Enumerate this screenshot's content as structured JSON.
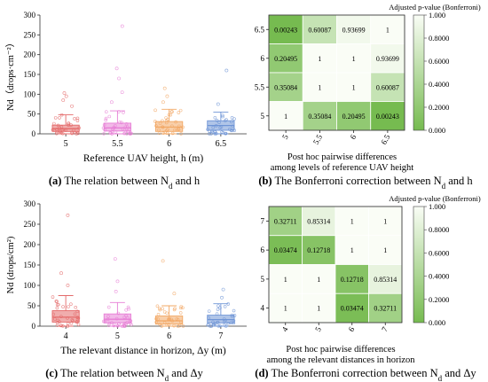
{
  "chart_data": [
    {
      "type": "box",
      "caption": {
        "letter": "(a)",
        "text": " The relation between N",
        "sub": "d",
        "tail": " and h"
      },
      "ylabel": "Nd（drops·cm⁻²）",
      "xlabel": "Reference UAV height, h (m)",
      "categories": [
        "5",
        "5.5",
        "6",
        "6.5"
      ],
      "ylim": [
        0,
        300
      ],
      "yticks": [
        0,
        50,
        100,
        150,
        200,
        250,
        300
      ],
      "boxes": [
        {
          "q1": 6,
          "median": 13,
          "q3": 22,
          "whisker_low": 0,
          "whisker_high": 48,
          "outliers": [
            70,
            85,
            95,
            103
          ],
          "color": "#e46a6a"
        },
        {
          "q1": 7,
          "median": 15,
          "q3": 27,
          "whisker_low": 0,
          "whisker_high": 58,
          "outliers": [
            80,
            105,
            140,
            165,
            272
          ],
          "color": "#e77fd6"
        },
        {
          "q1": 6,
          "median": 17,
          "q3": 31,
          "whisker_low": 0,
          "whisker_high": 62,
          "outliers": [
            80,
            95,
            115
          ],
          "color": "#f2a865"
        },
        {
          "q1": 9,
          "median": 21,
          "q3": 33,
          "whisker_low": 0,
          "whisker_high": 55,
          "outliers": [
            75,
            160
          ],
          "color": "#6f95d6"
        }
      ]
    },
    {
      "type": "heatmap",
      "caption": {
        "letter": "(b)",
        "text": " The Bonferroni correction between N",
        "sub": "d",
        "tail": " and h"
      },
      "xlabel_lines": [
        "Post hoc pairwise differences",
        "among levels of reference UAV height"
      ],
      "colorbar_title": "Adjusted p-value (Bonferroni)",
      "colorbar_ticks": [
        "0.000",
        "0.2000",
        "0.4000",
        "0.6000",
        "0.8000",
        "1.000"
      ],
      "x_categories": [
        "5",
        "5.5",
        "6",
        "6.5"
      ],
      "y_categories": [
        "6.5",
        "6",
        "5.5",
        "5"
      ],
      "matrix": [
        [
          "0.00243",
          "0.60087",
          "0.93699",
          "1"
        ],
        [
          "0.20495",
          "1",
          "1",
          "0.93699"
        ],
        [
          "0.35084",
          "1",
          "1",
          "0.60087"
        ],
        [
          "1",
          "0.35084",
          "0.20495",
          "0.00243"
        ]
      ]
    },
    {
      "type": "box",
      "caption": {
        "letter": "(c)",
        "text": " The relation between N",
        "sub": "d",
        "tail": " and Δy"
      },
      "ylabel": "Nd (drops/cm²)",
      "xlabel": "The relevant distance in horizon, Δy (m)",
      "categories": [
        "4",
        "5",
        "6",
        "7"
      ],
      "ylim": [
        0,
        300
      ],
      "yticks": [
        0,
        50,
        100,
        150,
        200,
        250,
        300
      ],
      "boxes": [
        {
          "q1": 10,
          "median": 22,
          "q3": 38,
          "whisker_low": 0,
          "whisker_high": 75,
          "outliers": [
            100,
            130,
            272
          ],
          "color": "#e46a6a"
        },
        {
          "q1": 8,
          "median": 17,
          "q3": 30,
          "whisker_low": 0,
          "whisker_high": 58,
          "outliers": [
            85,
            110,
            165
          ],
          "color": "#e77fd6"
        },
        {
          "q1": 5,
          "median": 13,
          "q3": 25,
          "whisker_low": 0,
          "whisker_high": 50,
          "outliers": [
            80,
            160
          ],
          "color": "#f2a865"
        },
        {
          "q1": 8,
          "median": 16,
          "q3": 27,
          "whisker_low": 0,
          "whisker_high": 55,
          "outliers": [
            70,
            90
          ],
          "color": "#6f95d6"
        }
      ]
    },
    {
      "type": "heatmap",
      "caption": {
        "letter": "(d)",
        "text": " The Bonferroni correction between N",
        "sub": "d",
        "tail": " and Δy"
      },
      "xlabel_lines": [
        "Post hoc pairwise differences",
        "among the relevant distances in horizon"
      ],
      "colorbar_title": "Adjusted p-value (Bonferroni)",
      "colorbar_ticks": [
        "0.000",
        "0.2000",
        "0.4000",
        "0.6000",
        "0.8000",
        "1.000"
      ],
      "x_categories": [
        "4",
        "5",
        "6",
        "7"
      ],
      "y_categories": [
        "7",
        "6",
        "5",
        "4"
      ],
      "matrix": [
        [
          "0.32711",
          "0.85314",
          "1",
          "1"
        ],
        [
          "0.03474",
          "0.12718",
          "1",
          "1"
        ],
        [
          "1",
          "1",
          "0.12718",
          "0.85314"
        ],
        [
          "1",
          "1",
          "0.03474",
          "0.32711"
        ]
      ]
    }
  ]
}
